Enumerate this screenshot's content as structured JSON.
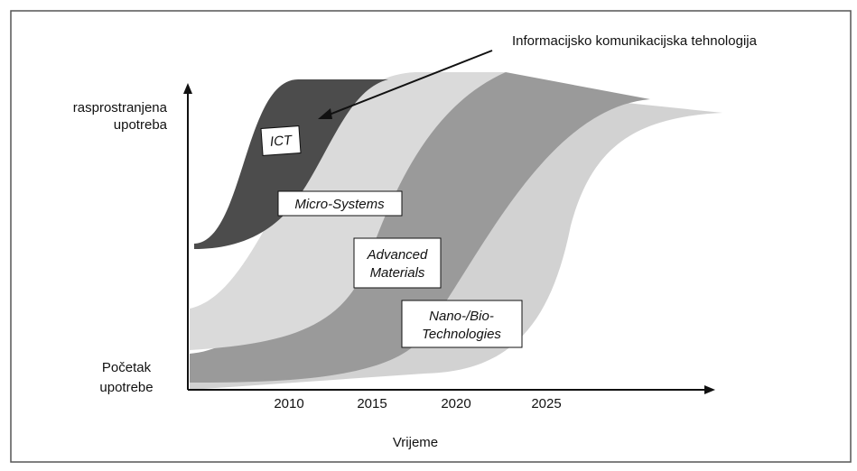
{
  "annotation": "Informacijsko komunikacijska tehnologija",
  "y_axis": {
    "top_label": [
      "rasprostranjena",
      "upotreba"
    ],
    "bottom_label": [
      "Početak",
      "upotrebe"
    ]
  },
  "x_axis": {
    "label": "Vrijeme",
    "ticks": [
      "2010",
      "2015",
      "2020",
      "2025"
    ]
  },
  "technologies": [
    {
      "lines": [
        "ICT"
      ]
    },
    {
      "lines": [
        "Micro-Systems"
      ]
    },
    {
      "lines": [
        "Advanced",
        "Materials"
      ]
    },
    {
      "lines": [
        "Nano-/Bio-",
        "Technologies"
      ]
    }
  ]
}
